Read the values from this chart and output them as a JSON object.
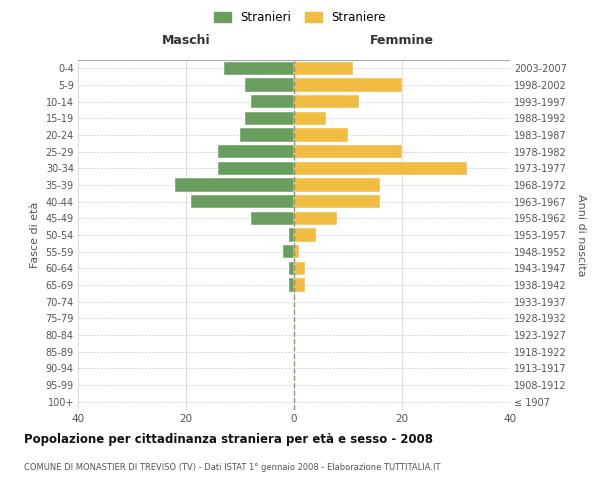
{
  "age_groups": [
    "100+",
    "95-99",
    "90-94",
    "85-89",
    "80-84",
    "75-79",
    "70-74",
    "65-69",
    "60-64",
    "55-59",
    "50-54",
    "45-49",
    "40-44",
    "35-39",
    "30-34",
    "25-29",
    "20-24",
    "15-19",
    "10-14",
    "5-9",
    "0-4"
  ],
  "birth_years": [
    "≤ 1907",
    "1908-1912",
    "1913-1917",
    "1918-1922",
    "1923-1927",
    "1928-1932",
    "1933-1937",
    "1938-1942",
    "1943-1947",
    "1948-1952",
    "1953-1957",
    "1958-1962",
    "1963-1967",
    "1968-1972",
    "1973-1977",
    "1978-1982",
    "1983-1987",
    "1988-1992",
    "1993-1997",
    "1998-2002",
    "2003-2007"
  ],
  "males": [
    0,
    0,
    0,
    0,
    0,
    0,
    0,
    1,
    1,
    2,
    1,
    8,
    19,
    22,
    14,
    14,
    10,
    9,
    8,
    9,
    13
  ],
  "females": [
    0,
    0,
    0,
    0,
    0,
    0,
    0,
    2,
    2,
    1,
    4,
    8,
    16,
    16,
    32,
    20,
    10,
    6,
    12,
    20,
    11
  ],
  "male_color": "#6a9e5e",
  "female_color": "#f0bc42",
  "background_color": "#ffffff",
  "grid_color": "#cccccc",
  "title": "Popolazione per cittadinanza straniera per età e sesso - 2008",
  "subtitle": "COMUNE DI MONASTIER DI TREVISO (TV) - Dati ISTAT 1° gennaio 2008 - Elaborazione TUTTITALIA.IT",
  "xlabel_left": "Maschi",
  "xlabel_right": "Femmine",
  "ylabel_left": "Fasce di età",
  "ylabel_right": "Anni di nascita",
  "legend_male": "Stranieri",
  "legend_female": "Straniere",
  "xlim": 40,
  "center_line_color": "#888855"
}
